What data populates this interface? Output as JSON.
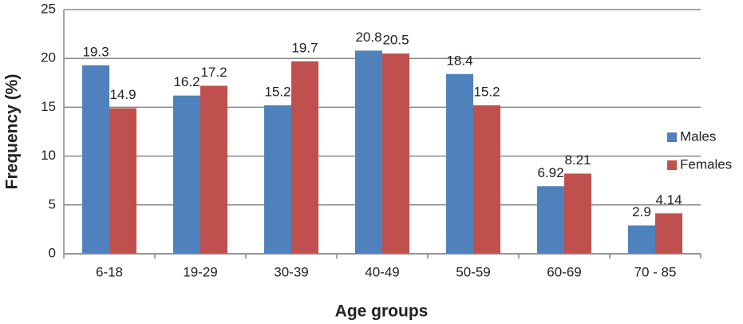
{
  "chart_data": {
    "type": "bar",
    "x_label": "Age groups",
    "y_label": "Frequency (%)",
    "categories": [
      "6-18",
      "19-29",
      "30-39",
      "40-49",
      "50-59",
      "60-69",
      "70 - 85"
    ],
    "series": [
      {
        "name": "Males",
        "color": "#4f81bd",
        "values": [
          19.3,
          16.2,
          15.2,
          20.8,
          18.4,
          6.92,
          2.9
        ]
      },
      {
        "name": "Females",
        "color": "#c0504d",
        "values": [
          14.9,
          17.2,
          19.7,
          20.5,
          15.2,
          8.21,
          4.14
        ]
      }
    ],
    "ylim": [
      0,
      25
    ],
    "yticks": [
      0,
      5,
      10,
      15,
      20,
      25
    ],
    "grid": true,
    "legend": "right"
  }
}
